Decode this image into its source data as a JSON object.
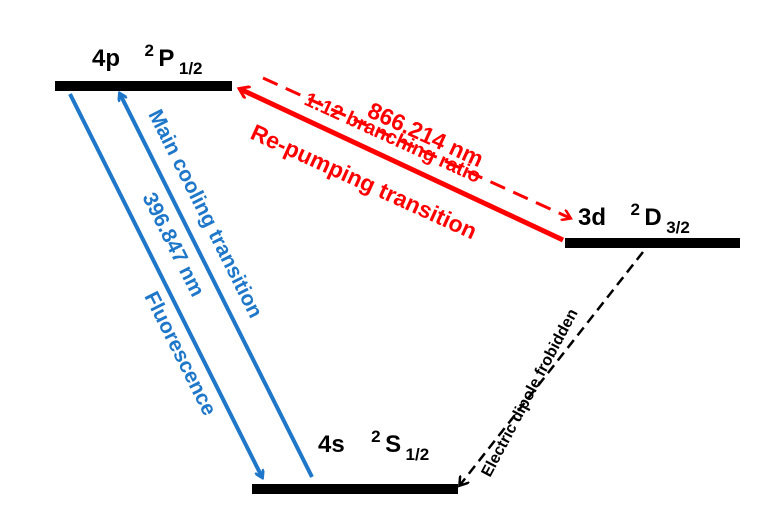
{
  "levels": {
    "p": {
      "orbital": "4p",
      "term": "2",
      "letter": "P",
      "j": "1/2"
    },
    "d": {
      "orbital": "3d",
      "term": "2",
      "letter": "D",
      "j": "3/2"
    },
    "s": {
      "orbital": "4s",
      "term": "2",
      "letter": "S",
      "j": "1/2"
    }
  },
  "labels": {
    "main_cooling": "Main cooling transition",
    "wavelength_396": "396.847 nm",
    "fluorescence": "Fluorescence",
    "wavelength_866": "866.214 nm",
    "branching": "1:12 branching ratio",
    "repumping": "Re-pumping transition",
    "forbidden": "Electric dipole frobidden"
  },
  "colors": {
    "blue": "#1f77c9",
    "red": "#ff0000",
    "black": "#000000"
  }
}
